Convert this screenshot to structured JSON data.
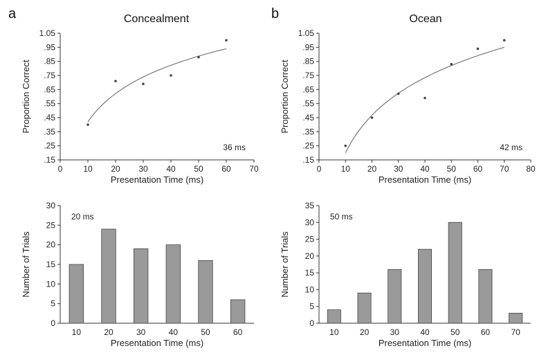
{
  "panels": [
    {
      "letter": "a",
      "title": "Concealment"
    },
    {
      "letter": "b",
      "title": "Ocean"
    }
  ],
  "chart_data": [
    {
      "type": "scatter",
      "panel": "a",
      "title": "Concealment",
      "xlabel": "Presentation Time (ms)",
      "ylabel": "Proportion Correct",
      "xlim": [
        0,
        70
      ],
      "ylim": [
        0.15,
        1.05
      ],
      "xticks": [
        "0",
        "10",
        "20",
        "30",
        "40",
        "50",
        "60",
        "70"
      ],
      "yticks": [
        ".15",
        ".25",
        ".35",
        ".45",
        ".55",
        ".65",
        ".75",
        ".85",
        ".95",
        "1.05"
      ],
      "x": [
        10,
        20,
        30,
        40,
        50,
        60
      ],
      "y": [
        0.4,
        0.71,
        0.69,
        0.75,
        0.88,
        1.0
      ],
      "fit": {
        "kind": "log",
        "x_range": [
          10,
          60
        ],
        "y_start": 0.42,
        "y_end": 0.94
      },
      "annotation": "36 ms",
      "annotation_position": "bottom-right"
    },
    {
      "type": "scatter",
      "panel": "b",
      "title": "Ocean",
      "xlabel": "Presentation Time (ms)",
      "ylabel": "Proportion Correct",
      "xlim": [
        0,
        80
      ],
      "ylim": [
        0.15,
        1.05
      ],
      "xticks": [
        "0",
        "10",
        "20",
        "30",
        "40",
        "50",
        "60",
        "70",
        "80"
      ],
      "yticks": [
        ".15",
        ".25",
        ".35",
        ".45",
        ".55",
        ".65",
        ".75",
        ".85",
        ".95",
        "1.05"
      ],
      "x": [
        10,
        20,
        30,
        40,
        50,
        60,
        70
      ],
      "y": [
        0.25,
        0.45,
        0.62,
        0.59,
        0.83,
        0.94,
        1.0
      ],
      "fit": {
        "kind": "log",
        "x_range": [
          10,
          70
        ],
        "y_start": 0.2,
        "y_end": 0.95
      },
      "annotation": "42 ms",
      "annotation_position": "bottom-right"
    },
    {
      "type": "bar",
      "panel": "a",
      "xlabel": "Presentation Time (ms)",
      "ylabel": "Number of Trials",
      "ylim": [
        0,
        30
      ],
      "yticks": [
        "0",
        "5",
        "10",
        "15",
        "20",
        "25",
        "30"
      ],
      "categories": [
        "10",
        "20",
        "30",
        "40",
        "50",
        "60"
      ],
      "values": [
        15,
        24,
        19,
        20,
        16,
        6
      ],
      "annotation": "20 ms",
      "annotation_position": "top-left"
    },
    {
      "type": "bar",
      "panel": "b",
      "xlabel": "Presentation Time (ms)",
      "ylabel": "Number of Trials",
      "ylim": [
        0,
        35
      ],
      "yticks": [
        "0",
        "5",
        "10",
        "15",
        "20",
        "25",
        "30",
        "35"
      ],
      "categories": [
        "10",
        "20",
        "30",
        "40",
        "50",
        "60",
        "70"
      ],
      "values": [
        4,
        9,
        16,
        22,
        30,
        16,
        3
      ],
      "annotation": "50 ms",
      "annotation_position": "top-left"
    }
  ]
}
